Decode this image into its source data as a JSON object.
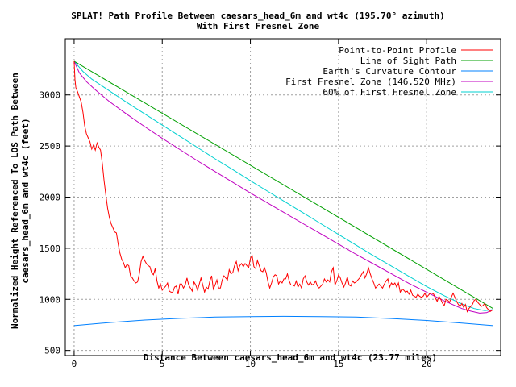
{
  "chart_data": {
    "type": "line",
    "title": "SPLAT! Path Profile Between caesars_head_6m and wt4c (195.70° azimuth)",
    "subtitle": "With First Fresnel Zone",
    "xlabel": "Distance Between caesars_head_6m and wt4c (23.77 miles)",
    "ylabel_line1": "Normalized Height Referenced To LOS Path Between",
    "ylabel_line2": "caesars_head_6m and wt4c (feet)",
    "xlim": [
      -0.5,
      24.2
    ],
    "ylim": [
      450,
      3550
    ],
    "x_ticks": [
      0,
      5,
      10,
      15,
      20
    ],
    "y_ticks": [
      500,
      1000,
      1500,
      2000,
      2500,
      3000
    ],
    "grid": true,
    "legend_position": "top-right",
    "series": [
      {
        "name": "Point-to-Point Profile",
        "color": "#ff0000",
        "x": [
          0,
          0.05,
          0.1,
          0.2,
          0.3,
          0.4,
          0.5,
          0.6,
          0.7,
          0.8,
          0.9,
          1.0,
          1.1,
          1.2,
          1.3,
          1.4,
          1.5,
          1.6,
          1.7,
          1.8,
          1.9,
          2.0,
          2.1,
          2.2,
          2.3,
          2.4,
          2.5,
          2.6,
          2.7,
          2.8,
          2.9,
          3.0,
          3.1,
          3.2,
          3.3,
          3.4,
          3.5,
          3.6,
          3.7,
          3.8,
          3.9,
          4.0,
          4.1,
          4.2,
          4.3,
          4.4,
          4.5,
          4.6,
          4.7,
          4.8,
          4.9,
          5.0,
          5.1,
          5.2,
          5.3,
          5.4,
          5.5,
          5.6,
          5.7,
          5.8,
          5.9,
          6.0,
          6.1,
          6.2,
          6.3,
          6.4,
          6.5,
          6.6,
          6.7,
          6.8,
          6.9,
          7.0,
          7.1,
          7.2,
          7.3,
          7.4,
          7.5,
          7.6,
          7.7,
          7.8,
          7.9,
          8.0,
          8.1,
          8.2,
          8.3,
          8.4,
          8.5,
          8.6,
          8.7,
          8.8,
          8.9,
          9.0,
          9.1,
          9.2,
          9.3,
          9.4,
          9.5,
          9.6,
          9.7,
          9.8,
          9.9,
          10.0,
          10.1,
          10.2,
          10.3,
          10.4,
          10.5,
          10.6,
          10.7,
          10.8,
          10.9,
          11.0,
          11.1,
          11.2,
          11.3,
          11.4,
          11.5,
          11.6,
          11.7,
          11.8,
          11.9,
          12.0,
          12.1,
          12.2,
          12.3,
          12.4,
          12.5,
          12.6,
          12.7,
          12.8,
          12.9,
          13.0,
          13.1,
          13.2,
          13.3,
          13.4,
          13.5,
          13.6,
          13.7,
          13.8,
          13.9,
          14.0,
          14.1,
          14.2,
          14.3,
          14.4,
          14.5,
          14.6,
          14.7,
          14.8,
          14.9,
          15.0,
          15.1,
          15.2,
          15.3,
          15.4,
          15.5,
          15.6,
          15.7,
          15.8,
          15.9,
          16.0,
          16.1,
          16.2,
          16.3,
          16.4,
          16.5,
          16.6,
          16.7,
          16.8,
          16.9,
          17.0,
          17.1,
          17.2,
          17.3,
          17.4,
          17.5,
          17.6,
          17.7,
          17.8,
          17.9,
          18.0,
          18.1,
          18.2,
          18.3,
          18.4,
          18.5,
          18.6,
          18.7,
          18.8,
          18.9,
          19.0,
          19.1,
          19.2,
          19.3,
          19.4,
          19.5,
          19.6,
          19.7,
          19.8,
          19.9,
          20.0,
          20.1,
          20.2,
          20.3,
          20.4,
          20.5,
          20.6,
          20.7,
          20.8,
          20.9,
          21.0,
          21.1,
          21.2,
          21.3,
          21.4,
          21.5,
          21.6,
          21.7,
          21.8,
          21.9,
          22.0,
          22.1,
          22.2,
          22.3,
          22.4,
          22.5,
          22.6,
          22.7,
          22.8,
          22.9,
          23.0,
          23.1,
          23.2,
          23.3,
          23.4,
          23.5,
          23.6,
          23.77
        ],
        "y": [
          3330,
          3150,
          3070,
          3030,
          2980,
          2930,
          2830,
          2700,
          2620,
          2580,
          2540,
          2470,
          2510,
          2460,
          2530,
          2490,
          2460,
          2330,
          2160,
          2020,
          1890,
          1800,
          1740,
          1700,
          1660,
          1650,
          1540,
          1450,
          1390,
          1360,
          1310,
          1340,
          1330,
          1230,
          1210,
          1180,
          1160,
          1170,
          1250,
          1370,
          1420,
          1380,
          1350,
          1330,
          1320,
          1260,
          1240,
          1300,
          1180,
          1110,
          1150,
          1090,
          1110,
          1130,
          1160,
          1080,
          1070,
          1070,
          1120,
          1130,
          1050,
          1150,
          1150,
          1110,
          1140,
          1210,
          1140,
          1110,
          1080,
          1170,
          1140,
          1090,
          1150,
          1210,
          1140,
          1070,
          1120,
          1100,
          1180,
          1230,
          1100,
          1140,
          1190,
          1110,
          1110,
          1190,
          1230,
          1210,
          1190,
          1290,
          1250,
          1260,
          1330,
          1370,
          1280,
          1330,
          1350,
          1320,
          1350,
          1330,
          1310,
          1400,
          1430,
          1320,
          1300,
          1380,
          1330,
          1280,
          1270,
          1310,
          1260,
          1170,
          1110,
          1160,
          1220,
          1240,
          1230,
          1150,
          1180,
          1160,
          1200,
          1200,
          1250,
          1180,
          1140,
          1140,
          1130,
          1180,
          1120,
          1150,
          1110,
          1200,
          1230,
          1170,
          1140,
          1170,
          1140,
          1150,
          1180,
          1130,
          1110,
          1130,
          1150,
          1200,
          1170,
          1190,
          1170,
          1270,
          1310,
          1140,
          1180,
          1240,
          1210,
          1160,
          1120,
          1160,
          1220,
          1140,
          1130,
          1180,
          1160,
          1170,
          1190,
          1210,
          1240,
          1270,
          1210,
          1250,
          1310,
          1250,
          1200,
          1160,
          1110,
          1130,
          1150,
          1130,
          1110,
          1150,
          1180,
          1200,
          1120,
          1160,
          1140,
          1160,
          1120,
          1160,
          1070,
          1100,
          1090,
          1070,
          1080,
          1050,
          1090,
          1040,
          1030,
          1020,
          1050,
          1030,
          1020,
          1030,
          1060,
          1020,
          1040,
          1060,
          1060,
          1050,
          1010,
          980,
          1030,
          1000,
          960,
          940,
          1000,
          990,
          970,
          1020,
          1060,
          1020,
          980,
          950,
          930,
          960,
          920,
          950,
          880,
          910,
          930,
          950,
          990,
          1000,
          970,
          950,
          930,
          940,
          960,
          920,
          900,
          880,
          900
        ]
      },
      {
        "name": "Line of Sight Path",
        "color": "#00a000",
        "x": [
          0,
          23.77
        ],
        "y": [
          3330,
          910
        ]
      },
      {
        "name": "Earth's Curvature Contour",
        "color": "#0080ff",
        "x": [
          0,
          2,
          4,
          6,
          8,
          10,
          11.885,
          14,
          16,
          18,
          20,
          22,
          23.77
        ],
        "y": [
          743,
          773,
          797,
          814,
          826,
          831,
          833,
          831,
          826,
          812,
          793,
          767,
          743
        ]
      },
      {
        "name": "First Fresnel Zone (146.520 MHz)",
        "color": "#c000c0",
        "x": [
          0,
          0.3,
          0.7,
          1.2,
          2,
          3,
          4,
          5,
          6,
          7,
          8,
          9,
          10,
          11,
          12,
          13,
          14,
          15,
          16,
          17,
          18,
          19,
          20,
          21,
          22,
          22.5,
          23,
          23.4,
          23.77
        ],
        "y": [
          3330,
          3215,
          3130,
          3050,
          2935,
          2810,
          2690,
          2575,
          2465,
          2355,
          2250,
          2145,
          2040,
          1940,
          1840,
          1740,
          1640,
          1540,
          1440,
          1345,
          1250,
          1155,
          1070,
          985,
          910,
          885,
          865,
          870,
          900
        ]
      },
      {
        "name": "60% of First Fresnel Zone",
        "color": "#00d0d0",
        "x": [
          0,
          0.5,
          1,
          2,
          3,
          4,
          5,
          6,
          7,
          8,
          9,
          10,
          11,
          12,
          13,
          14,
          15,
          16,
          17,
          18,
          19,
          20,
          21,
          22,
          22.7,
          23.3,
          23.77
        ],
        "y": [
          3330,
          3230,
          3155,
          3040,
          2925,
          2815,
          2705,
          2595,
          2485,
          2375,
          2270,
          2160,
          2055,
          1950,
          1845,
          1740,
          1635,
          1530,
          1425,
          1325,
          1225,
          1125,
          1035,
          955,
          910,
          890,
          900
        ]
      }
    ]
  }
}
